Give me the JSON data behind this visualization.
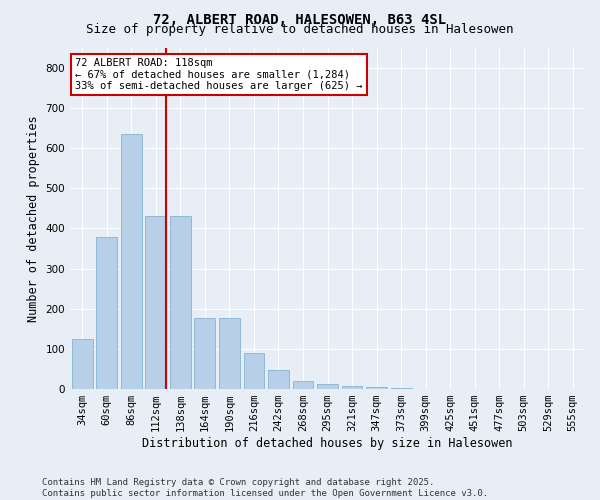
{
  "title": "72, ALBERT ROAD, HALESOWEN, B63 4SL",
  "subtitle": "Size of property relative to detached houses in Halesowen",
  "xlabel": "Distribution of detached houses by size in Halesowen",
  "ylabel": "Number of detached properties",
  "categories": [
    "34sqm",
    "60sqm",
    "86sqm",
    "112sqm",
    "138sqm",
    "164sqm",
    "190sqm",
    "216sqm",
    "242sqm",
    "268sqm",
    "295sqm",
    "321sqm",
    "347sqm",
    "373sqm",
    "399sqm",
    "425sqm",
    "451sqm",
    "477sqm",
    "503sqm",
    "529sqm",
    "555sqm"
  ],
  "values": [
    125,
    378,
    635,
    430,
    430,
    178,
    178,
    90,
    47,
    20,
    12,
    8,
    5,
    3,
    1,
    0,
    0,
    0,
    0,
    0,
    0
  ],
  "bar_color": "#b8cfe8",
  "bar_edge_color": "#7aaad0",
  "vline_color": "#cc0000",
  "annotation_text": "72 ALBERT ROAD: 118sqm\n← 67% of detached houses are smaller (1,284)\n33% of semi-detached houses are larger (625) →",
  "annotation_box_facecolor": "#ffffff",
  "annotation_box_edgecolor": "#cc0000",
  "ylim": [
    0,
    850
  ],
  "yticks": [
    0,
    100,
    200,
    300,
    400,
    500,
    600,
    700,
    800
  ],
  "bg_color": "#e8eef5",
  "grid_color": "#ffffff",
  "footer": "Contains HM Land Registry data © Crown copyright and database right 2025.\nContains public sector information licensed under the Open Government Licence v3.0.",
  "title_fontsize": 10,
  "subtitle_fontsize": 9,
  "xlabel_fontsize": 8.5,
  "ylabel_fontsize": 8.5,
  "tick_fontsize": 7.5,
  "footer_fontsize": 6.5,
  "annot_fontsize": 7.5
}
